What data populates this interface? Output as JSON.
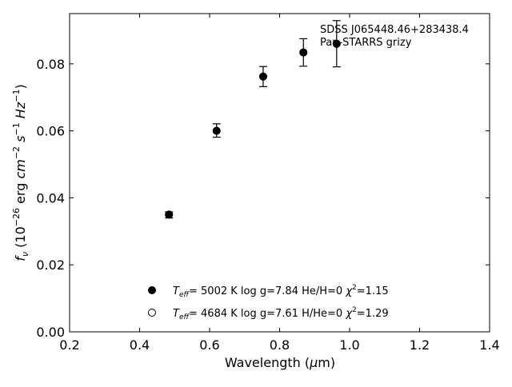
{
  "chart_data": {
    "type": "scatter",
    "title": "",
    "annotation_lines": [
      "SDSS J065448.46+283438.4",
      "Pan-STARRS grizy"
    ],
    "xlabel": "Wavelength (μm)",
    "ylabel": "f_ν (10^-26 erg cm^-2 s^-1 Hz^-1)",
    "xlim": [
      0.2,
      1.4
    ],
    "ylim": [
      0.0,
      0.095
    ],
    "xticks": [
      0.2,
      0.4,
      0.6,
      0.8,
      1.0,
      1.2,
      1.4
    ],
    "xtick_labels": [
      "0.2",
      "0.4",
      "0.6",
      "0.8",
      "1.0",
      "1.2",
      "1.4"
    ],
    "yticks": [
      0.0,
      0.02,
      0.04,
      0.06,
      0.08
    ],
    "ytick_labels": [
      "0.00",
      "0.02",
      "0.04",
      "0.06",
      "0.08"
    ],
    "grid": false,
    "observed": [
      {
        "x": 0.484,
        "y": 0.0349,
        "err": 0.0009
      },
      {
        "x": 0.62,
        "y": 0.0601,
        "err": 0.002
      },
      {
        "x": 0.753,
        "y": 0.0762,
        "err": 0.003
      },
      {
        "x": 0.868,
        "y": 0.0834,
        "err": 0.0041
      },
      {
        "x": 0.963,
        "y": 0.086,
        "err": 0.0069
      }
    ],
    "models": {
      "H": [
        {
          "x": 0.484,
          "y": 0.035
        },
        {
          "x": 0.62,
          "y": 0.06
        },
        {
          "x": 0.753,
          "y": 0.0762
        },
        {
          "x": 0.868,
          "y": 0.0834
        },
        {
          "x": 0.963,
          "y": 0.086
        }
      ],
      "He": [
        {
          "x": 0.484,
          "y": 0.035
        },
        {
          "x": 0.62,
          "y": 0.06
        },
        {
          "x": 0.753,
          "y": 0.0762
        },
        {
          "x": 0.868,
          "y": 0.0834
        },
        {
          "x": 0.963,
          "y": 0.086
        }
      ]
    },
    "legend_placement": "lower-center",
    "legend": [
      {
        "marker": "filled-circle",
        "teff": "5002 K",
        "logg": "log g=7.84",
        "comp": "He/H=0",
        "chi2": "=1.15"
      },
      {
        "marker": "open-circle",
        "teff": "4684 K",
        "logg": "log g=7.61",
        "comp": "H/He=0",
        "chi2": "=1.29"
      }
    ]
  }
}
